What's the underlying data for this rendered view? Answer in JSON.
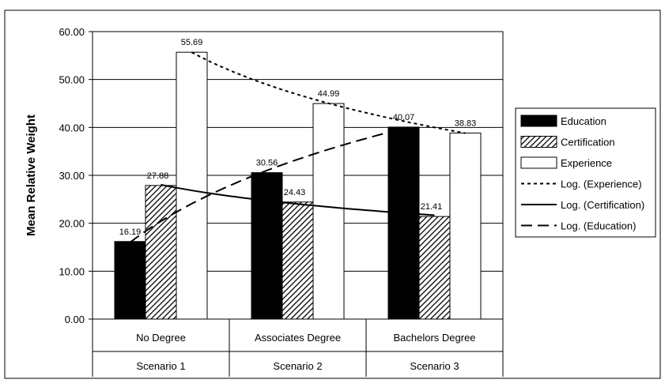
{
  "chart_data": {
    "type": "bar",
    "ylabel": "Mean Relative Weight",
    "ylim": [
      0,
      60
    ],
    "ytick_step": 10,
    "ytick_labels": [
      "0.00",
      "10.00",
      "20.00",
      "30.00",
      "40.00",
      "50.00",
      "60.00"
    ],
    "categories": [
      "No Degree",
      "Associates Degree",
      "Bachelors Degree"
    ],
    "category_groups": [
      "Scenario 1",
      "Scenario 2",
      "Scenario 3"
    ],
    "grid": "horizontal",
    "legend_position": "right",
    "series": [
      {
        "name": "Education",
        "values": [
          16.19,
          30.56,
          40.07
        ],
        "labels": [
          "16.19",
          "30.56",
          "40.07"
        ],
        "style": "solid",
        "color": "#000000"
      },
      {
        "name": "Certification",
        "values": [
          27.88,
          24.43,
          21.41
        ],
        "labels": [
          "27.88",
          "24.43",
          "21.41"
        ],
        "style": "hatched",
        "color": "#000000"
      },
      {
        "name": "Experience",
        "values": [
          55.69,
          44.99,
          38.83
        ],
        "labels": [
          "55.69",
          "44.99",
          "38.83"
        ],
        "style": "hollow",
        "color": "#ffffff"
      }
    ],
    "trendlines": [
      {
        "name": "Log. (Experience)",
        "series": "Experience",
        "type": "logarithmic",
        "dash": "dotted"
      },
      {
        "name": "Log. (Certification)",
        "series": "Certification",
        "type": "logarithmic",
        "dash": "solid"
      },
      {
        "name": "Log. (Education)",
        "series": "Education",
        "type": "logarithmic",
        "dash": "dashed"
      }
    ],
    "legend": [
      "Education",
      "Certification",
      "Experience",
      "Log. (Experience)",
      "Log. (Certification)",
      "Log. (Education)"
    ]
  }
}
